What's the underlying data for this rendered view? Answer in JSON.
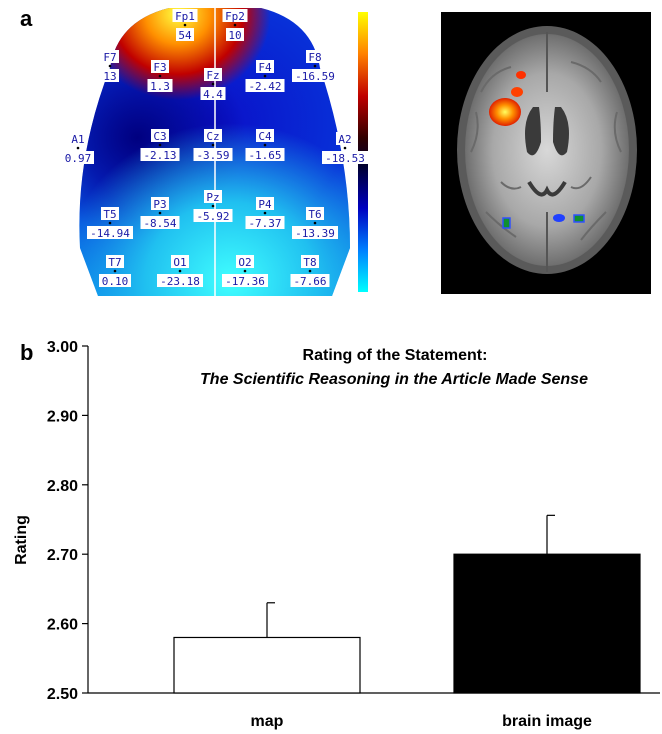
{
  "panels": {
    "a_label": "a",
    "b_label": "b"
  },
  "eeg_map": {
    "electrodes": [
      {
        "name": "Fp1",
        "value": "54"
      },
      {
        "name": "Fp2",
        "value": "10"
      },
      {
        "name": "F7",
        "value": "13"
      },
      {
        "name": "F3",
        "value": "1.3"
      },
      {
        "name": "Fz",
        "value": "4.4"
      },
      {
        "name": "F4",
        "value": "-2.42"
      },
      {
        "name": "F8",
        "value": "-16.59"
      },
      {
        "name": "A1",
        "value": "0.97"
      },
      {
        "name": "C3",
        "value": "-2.13"
      },
      {
        "name": "Cz",
        "value": "-3.59"
      },
      {
        "name": "C4",
        "value": "-1.65"
      },
      {
        "name": "A2",
        "value": "-18.53"
      },
      {
        "name": "Pz",
        "value": "-5.92"
      },
      {
        "name": "T5",
        "value": "-14.94"
      },
      {
        "name": "P3",
        "value": "-8.54"
      },
      {
        "name": "P4",
        "value": "-7.37"
      },
      {
        "name": "T6",
        "value": "-13.39"
      },
      {
        "name": "T7",
        "value": "0.10"
      },
      {
        "name": "O1",
        "value": "-23.18"
      },
      {
        "name": "O2",
        "value": "-17.36"
      },
      {
        "name": "T8",
        "value": "-7.66"
      }
    ],
    "scale_colors": [
      "#ffff00",
      "#ff8000",
      "#c00000",
      "#400000",
      "#000040",
      "#0000c0",
      "#0080ff",
      "#00ffff"
    ]
  },
  "chart_data": {
    "type": "bar",
    "title": "Rating of the Statement:",
    "subtitle": "The Scientific Reasoning in the Article Made Sense",
    "ylabel": "Rating",
    "xlabel": "",
    "categories": [
      "map",
      "brain image"
    ],
    "values": [
      2.58,
      2.7
    ],
    "errors": [
      0.05,
      0.056
    ],
    "bar_colors": [
      "#ffffff",
      "#000000"
    ],
    "ylim": [
      2.5,
      3.0
    ],
    "yticks": [
      "2.50",
      "2.60",
      "2.70",
      "2.80",
      "2.90",
      "3.00"
    ],
    "ytick_values": [
      2.5,
      2.6,
      2.7,
      2.8,
      2.9,
      3.0
    ],
    "grid": false,
    "legend": "none"
  }
}
